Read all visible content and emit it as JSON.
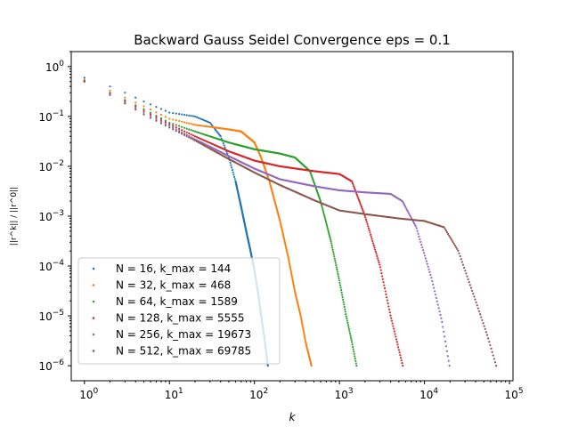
{
  "chart_data": {
    "type": "scatter",
    "title": "Backward Gauss Seidel Convergence eps = 0.1",
    "xlabel": "k",
    "ylabel": "||r^k|| / ||r^0||",
    "xscale": "log",
    "yscale": "log",
    "xlim": [
      0.7,
      110000
    ],
    "ylim": [
      5e-07,
      2
    ],
    "x_ticks": [
      {
        "value": 1,
        "base": "10",
        "exp": "0"
      },
      {
        "value": 10,
        "base": "10",
        "exp": "1"
      },
      {
        "value": 100,
        "base": "10",
        "exp": "2"
      },
      {
        "value": 1000,
        "base": "10",
        "exp": "3"
      },
      {
        "value": 10000,
        "base": "10",
        "exp": "4"
      },
      {
        "value": 100000,
        "base": "10",
        "exp": "5"
      }
    ],
    "y_ticks": [
      {
        "value": 1e-06,
        "base": "10",
        "exp": "−6"
      },
      {
        "value": 1e-05,
        "base": "10",
        "exp": "−5"
      },
      {
        "value": 0.0001,
        "base": "10",
        "exp": "−4"
      },
      {
        "value": 0.001,
        "base": "10",
        "exp": "−3"
      },
      {
        "value": 0.01,
        "base": "10",
        "exp": "−2"
      },
      {
        "value": 0.1,
        "base": "10",
        "exp": "−1"
      },
      {
        "value": 1,
        "base": "10",
        "exp": "0"
      }
    ],
    "legend_position": "lower-left",
    "grid": false,
    "series": [
      {
        "name": "N = 16, k_max = 144",
        "color": "#1f77b4",
        "points": [
          [
            1,
            0.6
          ],
          [
            2,
            0.4
          ],
          [
            3,
            0.3
          ],
          [
            5,
            0.2
          ],
          [
            10,
            0.12
          ],
          [
            20,
            0.1
          ],
          [
            30,
            0.075
          ],
          [
            40,
            0.04
          ],
          [
            50,
            0.015
          ],
          [
            60,
            0.005
          ],
          [
            70,
            0.0015
          ],
          [
            80,
            0.0005
          ],
          [
            90,
            0.0002
          ],
          [
            100,
            8e-05
          ],
          [
            110,
            3e-05
          ],
          [
            120,
            1e-05
          ],
          [
            130,
            4e-06
          ],
          [
            144,
            1e-06
          ]
        ]
      },
      {
        "name": "N = 32, k_max = 468",
        "color": "#ff7f0e",
        "points": [
          [
            1,
            0.55
          ],
          [
            2,
            0.33
          ],
          [
            5,
            0.16
          ],
          [
            10,
            0.09
          ],
          [
            20,
            0.068
          ],
          [
            50,
            0.055
          ],
          [
            70,
            0.05
          ],
          [
            100,
            0.03
          ],
          [
            120,
            0.015
          ],
          [
            150,
            0.005
          ],
          [
            200,
            0.0008
          ],
          [
            250,
            0.00015
          ],
          [
            300,
            3e-05
          ],
          [
            350,
            1e-05
          ],
          [
            400,
            3e-06
          ],
          [
            468,
            1e-06
          ]
        ]
      },
      {
        "name": "N = 64, k_max = 1589",
        "color": "#2ca02c",
        "points": [
          [
            1,
            0.52
          ],
          [
            2,
            0.3
          ],
          [
            5,
            0.14
          ],
          [
            10,
            0.075
          ],
          [
            20,
            0.05
          ],
          [
            50,
            0.03
          ],
          [
            100,
            0.022
          ],
          [
            200,
            0.018
          ],
          [
            300,
            0.015
          ],
          [
            450,
            0.008
          ],
          [
            600,
            0.002
          ],
          [
            800,
            0.0003
          ],
          [
            1000,
            5e-05
          ],
          [
            1200,
            1e-05
          ],
          [
            1400,
            3e-06
          ],
          [
            1589,
            1e-06
          ]
        ]
      },
      {
        "name": "N = 128, k_max = 5555",
        "color": "#d62728",
        "points": [
          [
            1,
            0.51
          ],
          [
            2,
            0.29
          ],
          [
            5,
            0.13
          ],
          [
            10,
            0.07
          ],
          [
            20,
            0.04
          ],
          [
            50,
            0.02
          ],
          [
            100,
            0.013
          ],
          [
            200,
            0.01
          ],
          [
            500,
            0.008
          ],
          [
            1000,
            0.007
          ],
          [
            1400,
            0.005
          ],
          [
            2000,
            0.001
          ],
          [
            3000,
            0.0001
          ],
          [
            4000,
            1e-05
          ],
          [
            5555,
            1e-06
          ]
        ]
      },
      {
        "name": "N = 256, k_max = 19673",
        "color": "#9467bd",
        "points": [
          [
            1,
            0.5
          ],
          [
            2,
            0.28
          ],
          [
            5,
            0.12
          ],
          [
            10,
            0.065
          ],
          [
            20,
            0.035
          ],
          [
            50,
            0.016
          ],
          [
            100,
            0.009
          ],
          [
            200,
            0.0055
          ],
          [
            500,
            0.004
          ],
          [
            1000,
            0.0033
          ],
          [
            2000,
            0.003
          ],
          [
            4000,
            0.0028
          ],
          [
            5500,
            0.002
          ],
          [
            8000,
            0.0006
          ],
          [
            12000,
            6e-05
          ],
          [
            16000,
            8e-06
          ],
          [
            19673,
            1e-06
          ]
        ]
      },
      {
        "name": "N = 512, k_max = 69785",
        "color": "#8c564b",
        "points": [
          [
            1,
            0.5
          ],
          [
            2,
            0.27
          ],
          [
            5,
            0.11
          ],
          [
            10,
            0.06
          ],
          [
            20,
            0.033
          ],
          [
            50,
            0.014
          ],
          [
            100,
            0.0075
          ],
          [
            200,
            0.0042
          ],
          [
            500,
            0.0021
          ],
          [
            1000,
            0.0013
          ],
          [
            2000,
            0.0011
          ],
          [
            5000,
            0.0009
          ],
          [
            10000,
            0.0008
          ],
          [
            17000,
            0.0006
          ],
          [
            25000,
            0.0002
          ],
          [
            40000,
            2e-05
          ],
          [
            55000,
            4e-06
          ],
          [
            69785,
            1e-06
          ]
        ]
      }
    ]
  }
}
